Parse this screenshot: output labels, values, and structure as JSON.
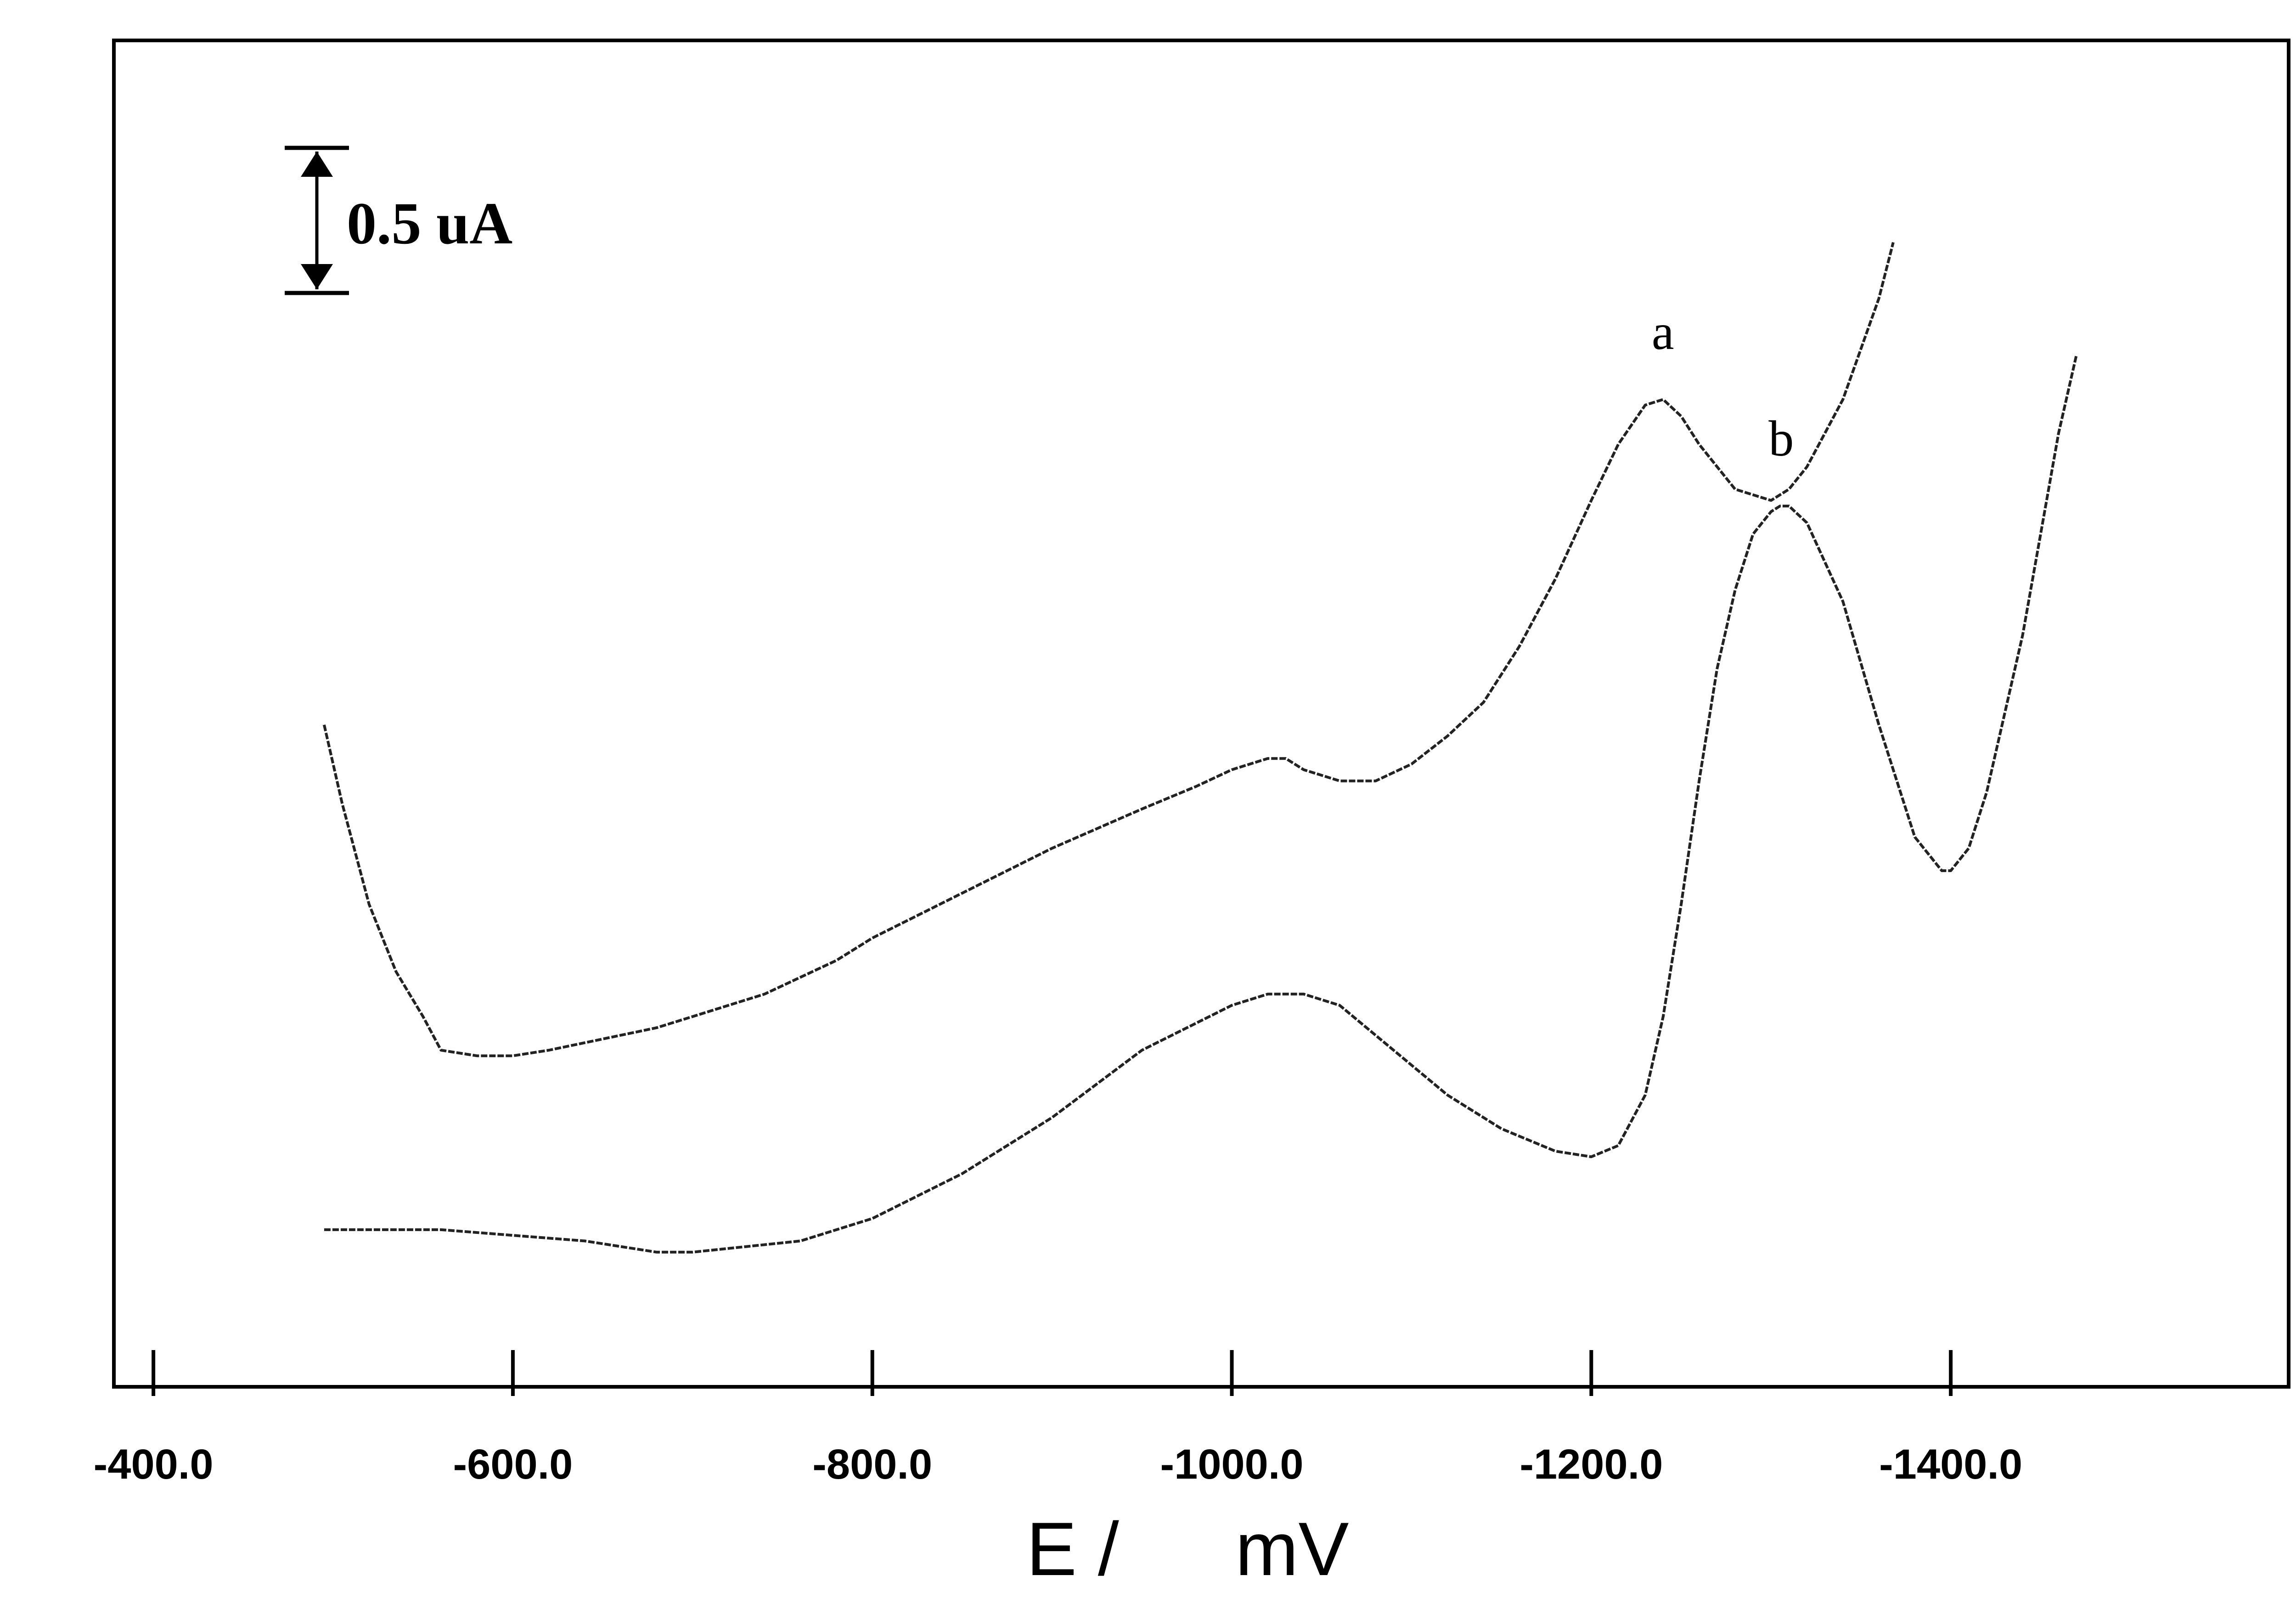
{
  "chart_data": {
    "type": "line",
    "xlabel_left": "E /",
    "xlabel_right": "mV",
    "xticks": [
      -400.0,
      -600.0,
      -800.0,
      -1000.0,
      -1200.0,
      -1400.0
    ],
    "xtick_labels": [
      "-400.0",
      "-600.0",
      "-800.0",
      "-1000.0",
      "-1200.0",
      "-1400.0"
    ],
    "xlim": [
      -378,
      -1588
    ],
    "ylim": [
      0,
      2.4
    ],
    "x_axis_reversed": true,
    "grid": false,
    "scale_bar": {
      "label": "0.5 uA",
      "value": 0.5
    },
    "series": [
      {
        "name": "a",
        "x": [
          -495,
          -505,
          -520,
          -535,
          -550,
          -560,
          -580,
          -600,
          -620,
          -650,
          -680,
          -700,
          -740,
          -780,
          -800,
          -850,
          -900,
          -950,
          -980,
          -1000,
          -1020,
          -1025,
          -1030,
          -1040,
          -1060,
          -1080,
          -1100,
          -1120,
          -1140,
          -1160,
          -1180,
          -1200,
          -1215,
          -1230,
          -1240,
          -1250,
          -1260,
          -1280,
          -1300,
          -1310,
          -1320,
          -1340,
          -1360,
          -1368
        ],
        "y": [
          1.18,
          1.04,
          0.86,
          0.74,
          0.66,
          0.6,
          0.59,
          0.59,
          0.6,
          0.62,
          0.64,
          0.66,
          0.7,
          0.76,
          0.8,
          0.88,
          0.96,
          1.03,
          1.07,
          1.1,
          1.12,
          1.12,
          1.12,
          1.1,
          1.08,
          1.08,
          1.11,
          1.16,
          1.22,
          1.32,
          1.44,
          1.58,
          1.68,
          1.75,
          1.76,
          1.73,
          1.68,
          1.6,
          1.58,
          1.6,
          1.64,
          1.76,
          1.94,
          2.04
        ]
      },
      {
        "name": "b",
        "x": [
          -495,
          -520,
          -560,
          -600,
          -640,
          -660,
          -680,
          -700,
          -730,
          -760,
          -800,
          -850,
          -900,
          -950,
          -1000,
          -1020,
          -1030,
          -1040,
          -1060,
          -1090,
          -1120,
          -1150,
          -1180,
          -1200,
          -1215,
          -1230,
          -1240,
          -1250,
          -1260,
          -1270,
          -1280,
          -1290,
          -1300,
          -1305,
          -1310,
          -1320,
          -1340,
          -1360,
          -1380,
          -1395,
          -1400,
          -1410,
          -1420,
          -1440,
          -1460,
          -1470
        ],
        "y": [
          0.28,
          0.28,
          0.28,
          0.27,
          0.26,
          0.25,
          0.24,
          0.24,
          0.25,
          0.26,
          0.3,
          0.38,
          0.48,
          0.6,
          0.68,
          0.7,
          0.7,
          0.7,
          0.68,
          0.6,
          0.52,
          0.46,
          0.42,
          0.41,
          0.43,
          0.52,
          0.66,
          0.86,
          1.08,
          1.28,
          1.42,
          1.52,
          1.56,
          1.57,
          1.57,
          1.54,
          1.4,
          1.18,
          0.98,
          0.92,
          0.92,
          0.96,
          1.06,
          1.34,
          1.7,
          1.84
        ]
      }
    ]
  }
}
